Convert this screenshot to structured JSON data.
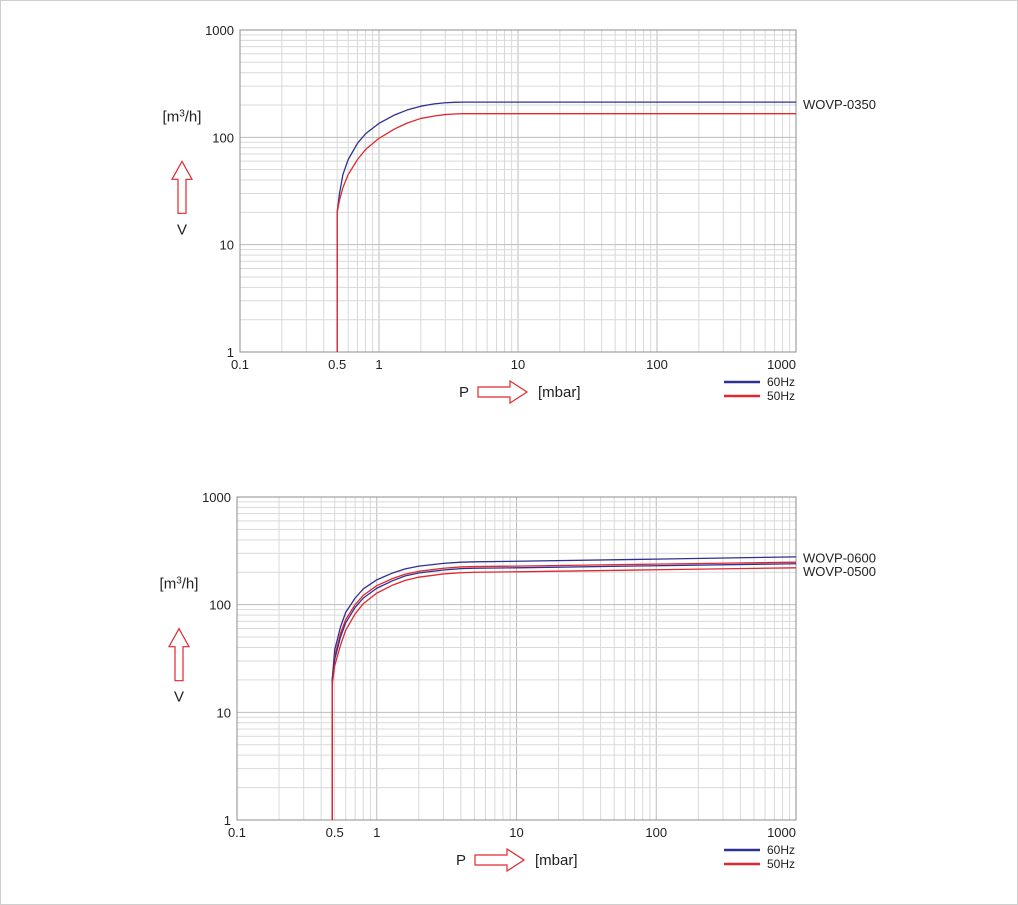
{
  "chart_data": [
    {
      "type": "line",
      "x_scale": "log",
      "y_scale": "log",
      "xlim": [
        0.1,
        1000
      ],
      "ylim": [
        1,
        1000
      ],
      "x_ticks": [
        "0.1",
        "0.5",
        "1",
        "10",
        "100",
        "1000"
      ],
      "y_ticks": [
        "1000",
        "100",
        "10",
        "1"
      ],
      "grid": true,
      "xlabel": "P",
      "xunit": "[mbar]",
      "ylabel": "V",
      "yunit_prefix": "[m",
      "yunit_sup": "3",
      "yunit_suffix": "/h]",
      "legend_position": "bottom-right",
      "legend": [
        {
          "label": "60Hz",
          "color": "#2e3192"
        },
        {
          "label": "50Hz",
          "color": "#e0282e"
        }
      ],
      "model_labels": [
        {
          "text": "WOVP-0350",
          "anchor_y": 205
        }
      ],
      "series": [
        {
          "model": "WOVP-0350",
          "freq": "60Hz",
          "color": "#2e3192",
          "points": [
            [
              0.5,
              1
            ],
            [
              0.5,
              20
            ],
            [
              0.52,
              30
            ],
            [
              0.55,
              45
            ],
            [
              0.6,
              62
            ],
            [
              0.7,
              88
            ],
            [
              0.8,
              108
            ],
            [
              1,
              135
            ],
            [
              1.3,
              162
            ],
            [
              1.6,
              180
            ],
            [
              2,
              195
            ],
            [
              2.5,
              205
            ],
            [
              3,
              210
            ],
            [
              3.5,
              212
            ],
            [
              4,
              213
            ],
            [
              10,
              213
            ],
            [
              100,
              213
            ],
            [
              1000,
              213
            ]
          ]
        },
        {
          "model": "WOVP-0350",
          "freq": "50Hz",
          "color": "#e0282e",
          "points": [
            [
              0.5,
              1
            ],
            [
              0.5,
              20
            ],
            [
              0.52,
              26
            ],
            [
              0.55,
              34
            ],
            [
              0.6,
              45
            ],
            [
              0.7,
              62
            ],
            [
              0.8,
              77
            ],
            [
              1,
              98
            ],
            [
              1.3,
              120
            ],
            [
              1.6,
              136
            ],
            [
              2,
              150
            ],
            [
              2.5,
              158
            ],
            [
              3,
              163
            ],
            [
              3.5,
              165
            ],
            [
              4,
              166
            ],
            [
              10,
              166
            ],
            [
              100,
              166
            ],
            [
              1000,
              166
            ]
          ]
        }
      ]
    },
    {
      "type": "line",
      "x_scale": "log",
      "y_scale": "log",
      "xlim": [
        0.1,
        1000
      ],
      "ylim": [
        1,
        1000
      ],
      "x_ticks": [
        "0.1",
        "0.5",
        "1",
        "10",
        "100",
        "1000"
      ],
      "y_ticks": [
        "1000",
        "100",
        "10",
        "1"
      ],
      "grid": true,
      "xlabel": "P",
      "xunit": "[mbar]",
      "ylabel": "V",
      "yunit_prefix": "[m",
      "yunit_sup": "3",
      "yunit_suffix": "/h]",
      "legend_position": "bottom-right",
      "legend": [
        {
          "label": "60Hz",
          "color": "#2e3192"
        },
        {
          "label": "50Hz",
          "color": "#e0282e"
        }
      ],
      "model_labels": [
        {
          "text": "WOVP-0600",
          "anchor_y": 275
        },
        {
          "text": "WOVP-0500",
          "anchor_y": 205
        }
      ],
      "series": [
        {
          "model": "WOVP-0600",
          "freq": "60Hz",
          "color": "#2e3192",
          "points": [
            [
              0.48,
              1
            ],
            [
              0.48,
              20
            ],
            [
              0.5,
              38
            ],
            [
              0.55,
              62
            ],
            [
              0.6,
              85
            ],
            [
              0.7,
              115
            ],
            [
              0.8,
              140
            ],
            [
              1,
              170
            ],
            [
              1.3,
              197
            ],
            [
              1.6,
              215
            ],
            [
              2,
              228
            ],
            [
              3,
              242
            ],
            [
              4,
              248
            ],
            [
              5,
              250
            ],
            [
              10,
              253
            ],
            [
              100,
              265
            ],
            [
              1000,
              278
            ]
          ]
        },
        {
          "model": "WOVP-0600",
          "freq": "50Hz",
          "color": "#e0282e",
          "points": [
            [
              0.48,
              1
            ],
            [
              0.48,
              20
            ],
            [
              0.5,
              33
            ],
            [
              0.55,
              54
            ],
            [
              0.6,
              73
            ],
            [
              0.7,
              100
            ],
            [
              0.8,
              122
            ],
            [
              1,
              150
            ],
            [
              1.3,
              175
            ],
            [
              1.6,
              192
            ],
            [
              2,
              204
            ],
            [
              3,
              218
            ],
            [
              4,
              224
            ],
            [
              5,
              226
            ],
            [
              10,
              228
            ],
            [
              100,
              238
            ],
            [
              1000,
              248
            ]
          ]
        },
        {
          "model": "WOVP-0500",
          "freq": "60Hz",
          "color": "#2e3192",
          "points": [
            [
              0.48,
              1
            ],
            [
              0.48,
              20
            ],
            [
              0.5,
              31
            ],
            [
              0.55,
              50
            ],
            [
              0.6,
              68
            ],
            [
              0.7,
              94
            ],
            [
              0.8,
              115
            ],
            [
              1,
              142
            ],
            [
              1.3,
              167
            ],
            [
              1.6,
              185
            ],
            [
              2,
              197
            ],
            [
              3,
              210
            ],
            [
              4,
              216
            ],
            [
              5,
              218
            ],
            [
              10,
              220
            ],
            [
              100,
              230
            ],
            [
              1000,
              240
            ]
          ]
        },
        {
          "model": "WOVP-0500",
          "freq": "50Hz",
          "color": "#e0282e",
          "points": [
            [
              0.48,
              1
            ],
            [
              0.48,
              18
            ],
            [
              0.5,
              27
            ],
            [
              0.55,
              42
            ],
            [
              0.6,
              58
            ],
            [
              0.7,
              82
            ],
            [
              0.8,
              102
            ],
            [
              1,
              128
            ],
            [
              1.3,
              152
            ],
            [
              1.6,
              168
            ],
            [
              2,
              180
            ],
            [
              3,
              193
            ],
            [
              4,
              198
            ],
            [
              5,
              200
            ],
            [
              10,
              202
            ],
            [
              100,
              211
            ],
            [
              1000,
              220
            ]
          ]
        }
      ]
    }
  ]
}
